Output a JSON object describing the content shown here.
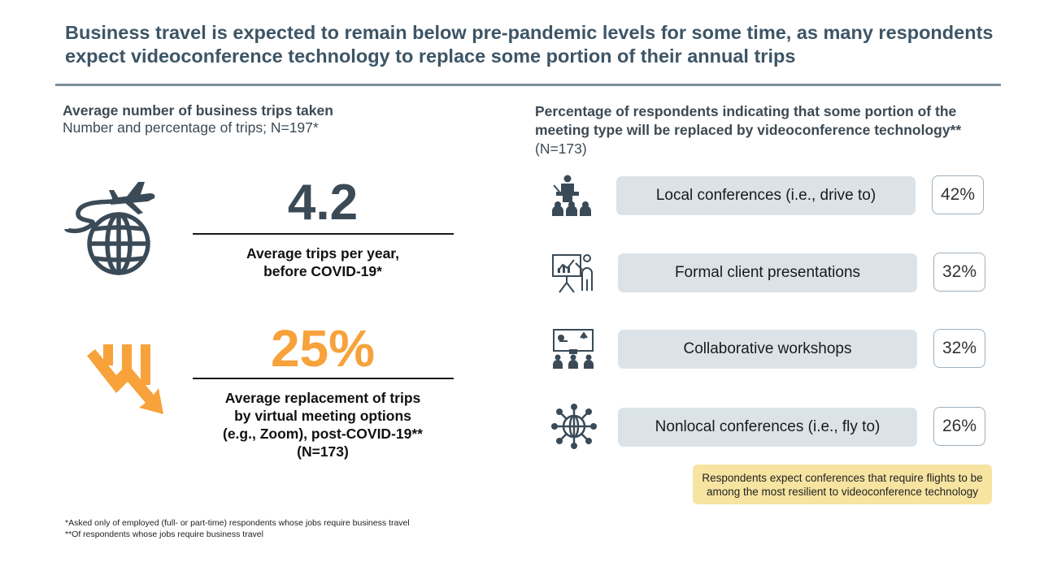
{
  "title": "Business travel is expected to remain below pre-pandemic levels for some time, as many respondents expect videoconference technology to replace some portion of their annual trips",
  "left": {
    "heading": "Average number of business trips taken",
    "subheading": "Number and percentage of trips; N=197*",
    "stats": [
      {
        "value": "4.2",
        "label_line1": "Average trips per year,",
        "label_line2": "before COVID-19*",
        "icon": "plane-globe-icon"
      },
      {
        "value": "25%",
        "label_line1": "Average replacement of trips",
        "label_line2": "by virtual meeting options",
        "label_line3": "(e.g., Zoom), post-COVID-19**",
        "label_line4": "(N=173)",
        "icon": "downtrend-arrow-icon"
      }
    ]
  },
  "right": {
    "heading_line1": "Percentage of respondents indicating that some portion of the",
    "heading_line2": "meeting type will be replaced by videoconference technology**",
    "n_note": "(N=173)"
  },
  "callout": {
    "line1": "Respondents expect conferences that require flights to be",
    "line2": "among the most resilient to videoconference technology"
  },
  "footnotes": {
    "f1": "*Asked only of employed (full- or part-time) respondents whose jobs require business travel",
    "f2": "**Of respondents whose jobs require business travel"
  },
  "colors": {
    "title": "#3d5566",
    "accent_orange": "#f7a23a",
    "icon_dark": "#3a4a57",
    "pill_bg": "#dbe3e8",
    "callout_bg": "#f7e4a1"
  },
  "chart_data": {
    "type": "table",
    "title": "Percentage of respondents indicating that some portion of the meeting type will be replaced by videoconference technology** (N=173)",
    "categories": [
      "Local conferences (i.e., drive to)",
      "Formal client presentations",
      "Collaborative workshops",
      "Nonlocal conferences (i.e., fly to)"
    ],
    "values": [
      42,
      32,
      32,
      26
    ],
    "value_labels": [
      "42%",
      "32%",
      "32%",
      "26%"
    ],
    "icons": [
      "speaker-audience-icon",
      "presentation-board-icon",
      "workshop-team-icon",
      "globe-network-icon"
    ]
  }
}
